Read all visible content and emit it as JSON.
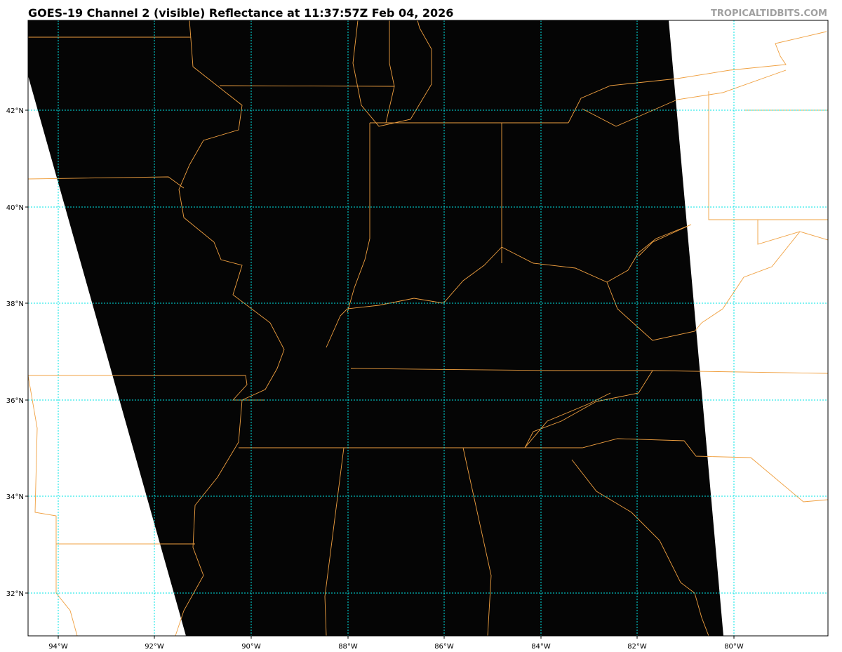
{
  "header": {
    "title": "GOES-19 Channel 2 (visible) Reflectance at 11:37:57Z Feb 04, 2026",
    "brand": "TROPICALTIDBITS.COM"
  },
  "map": {
    "product": "visible reflectance",
    "lon_ticks": [
      "94°W",
      "92°W",
      "90°W",
      "88°W",
      "86°W",
      "84°W",
      "82°W",
      "80°W"
    ],
    "lat_ticks": [
      "42°N",
      "40°N",
      "38°N",
      "36°N",
      "34°N",
      "32°N"
    ],
    "colors": {
      "gridlines": "#00e5e5",
      "borders": "#f0a040",
      "imagery": "#000000",
      "no_data": "#ffffff"
    }
  }
}
